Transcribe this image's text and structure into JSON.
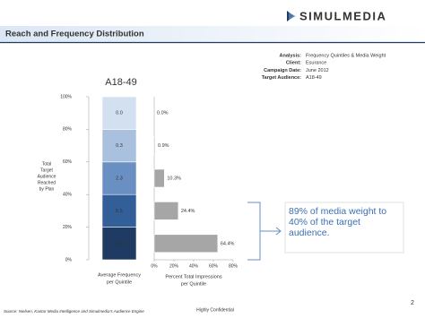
{
  "logo": "SIMULMEDIA",
  "header": {
    "title": "Reach and Frequency Distribution"
  },
  "info": [
    {
      "key": "Analysis:",
      "value": "Frequency Quintiles & Media Weight"
    },
    {
      "key": "Client:",
      "value": "Esurance"
    },
    {
      "key": "Campaign Date:",
      "value": "June 2012"
    },
    {
      "key": "Target Audience:",
      "value": "A18-49"
    }
  ],
  "chart_data": [
    {
      "type": "stacked_bar",
      "title": "A18-49",
      "ylabel": [
        "Total",
        "Target",
        "Audience",
        "Reached",
        "by Plan"
      ],
      "xlabel": [
        "Average Frequency",
        "per Quintile"
      ],
      "ylim": [
        0,
        100
      ],
      "yticks": [
        {
          "value": 0,
          "label": "0%"
        },
        {
          "value": 20,
          "label": "20%"
        },
        {
          "value": 40,
          "label": "40%"
        },
        {
          "value": 60,
          "label": "60%"
        },
        {
          "value": 80,
          "label": "80%"
        },
        {
          "value": 100,
          "label": "100%"
        }
      ],
      "series": [
        {
          "color": "#1f3b63",
          "values": [
            20
          ],
          "data_labels": [
            "14.6"
          ]
        },
        {
          "color": "#335f99",
          "values": [
            20
          ],
          "data_labels": [
            "5.5"
          ]
        },
        {
          "color": "#6a8fc2",
          "values": [
            20
          ],
          "data_labels": [
            "2.3"
          ]
        },
        {
          "color": "#a9c0de",
          "values": [
            20
          ],
          "data_labels": [
            "0.3"
          ]
        },
        {
          "color": "#d3e0ef",
          "values": [
            20
          ],
          "data_labels": [
            "0.0"
          ]
        }
      ]
    },
    {
      "type": "hbar",
      "xlabel": [
        "Percent Total Impressions",
        "per Quintile"
      ],
      "color": "#a6a6a6",
      "values": [
        64.4,
        24.4,
        10.3,
        0.9,
        0.0
      ],
      "value_labels": [
        "64.4%",
        "24.4%",
        "10.3%",
        "0.9%",
        "0.0%"
      ],
      "xlim": [
        0,
        80
      ],
      "xticks": [
        {
          "value": 0,
          "label": "0%"
        },
        {
          "value": 20,
          "label": "20%"
        },
        {
          "value": 40,
          "label": "40%"
        },
        {
          "value": 60,
          "label": "60%"
        },
        {
          "value": 80,
          "label": "80%"
        }
      ]
    }
  ],
  "callout": "89% of media weight to 40% of the target audience.",
  "footer": {
    "source": "Source: Nielsen, Kantar Media Intelligence and Simulmedia's Audience Engine",
    "confidential": "Highly Confidential",
    "page": "2"
  }
}
